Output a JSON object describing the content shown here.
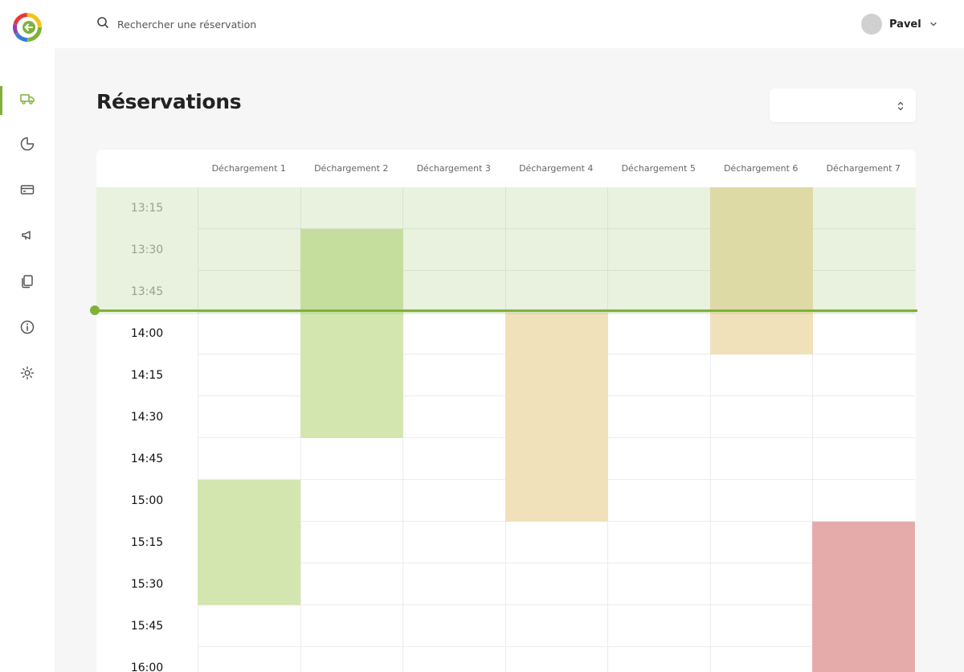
{
  "search": {
    "placeholder": "Rechercher une réservation"
  },
  "user": {
    "name": "Pavel"
  },
  "sidebar": {
    "items": [
      {
        "icon": "truck-icon",
        "active": true
      },
      {
        "icon": "pie-chart-icon",
        "active": false
      },
      {
        "icon": "credit-card-icon",
        "active": false
      },
      {
        "icon": "megaphone-icon",
        "active": false
      },
      {
        "icon": "documents-icon",
        "active": false
      },
      {
        "icon": "info-icon",
        "active": false
      },
      {
        "icon": "settings-icon",
        "active": false
      }
    ]
  },
  "page": {
    "title": "Réservations",
    "select_value": ""
  },
  "planning": {
    "columns": [
      "Déchargement 1",
      "Déchargement 2",
      "Déchargement 3",
      "Déchargement 4",
      "Déchargement 5",
      "Déchargement 6",
      "Déchargement 7"
    ],
    "times": [
      "13:15",
      "13:30",
      "13:45",
      "14:00",
      "14:15",
      "14:30",
      "14:45",
      "15:00",
      "15:15",
      "15:30",
      "15:45",
      "16:00"
    ],
    "past_slots": 3,
    "now": "13:59",
    "reservations": [
      {
        "column": 1,
        "start": "13:30",
        "end": "14:45",
        "status": "green"
      },
      {
        "column": 3,
        "start": "14:00",
        "end": "15:15",
        "status": "orange"
      },
      {
        "column": 5,
        "start": "13:15",
        "end": "14:15",
        "status": "orange"
      },
      {
        "column": 0,
        "start": "15:00",
        "end": "15:45",
        "status": "green"
      },
      {
        "column": 6,
        "start": "15:15",
        "end": "16:15",
        "status": "red"
      }
    ]
  },
  "colors": {
    "accent": "#7fb13a",
    "green": "#d3e6b0",
    "orange": "#f1e1ba",
    "red": "#e5abab",
    "past_overlay": "#e8f1de"
  }
}
